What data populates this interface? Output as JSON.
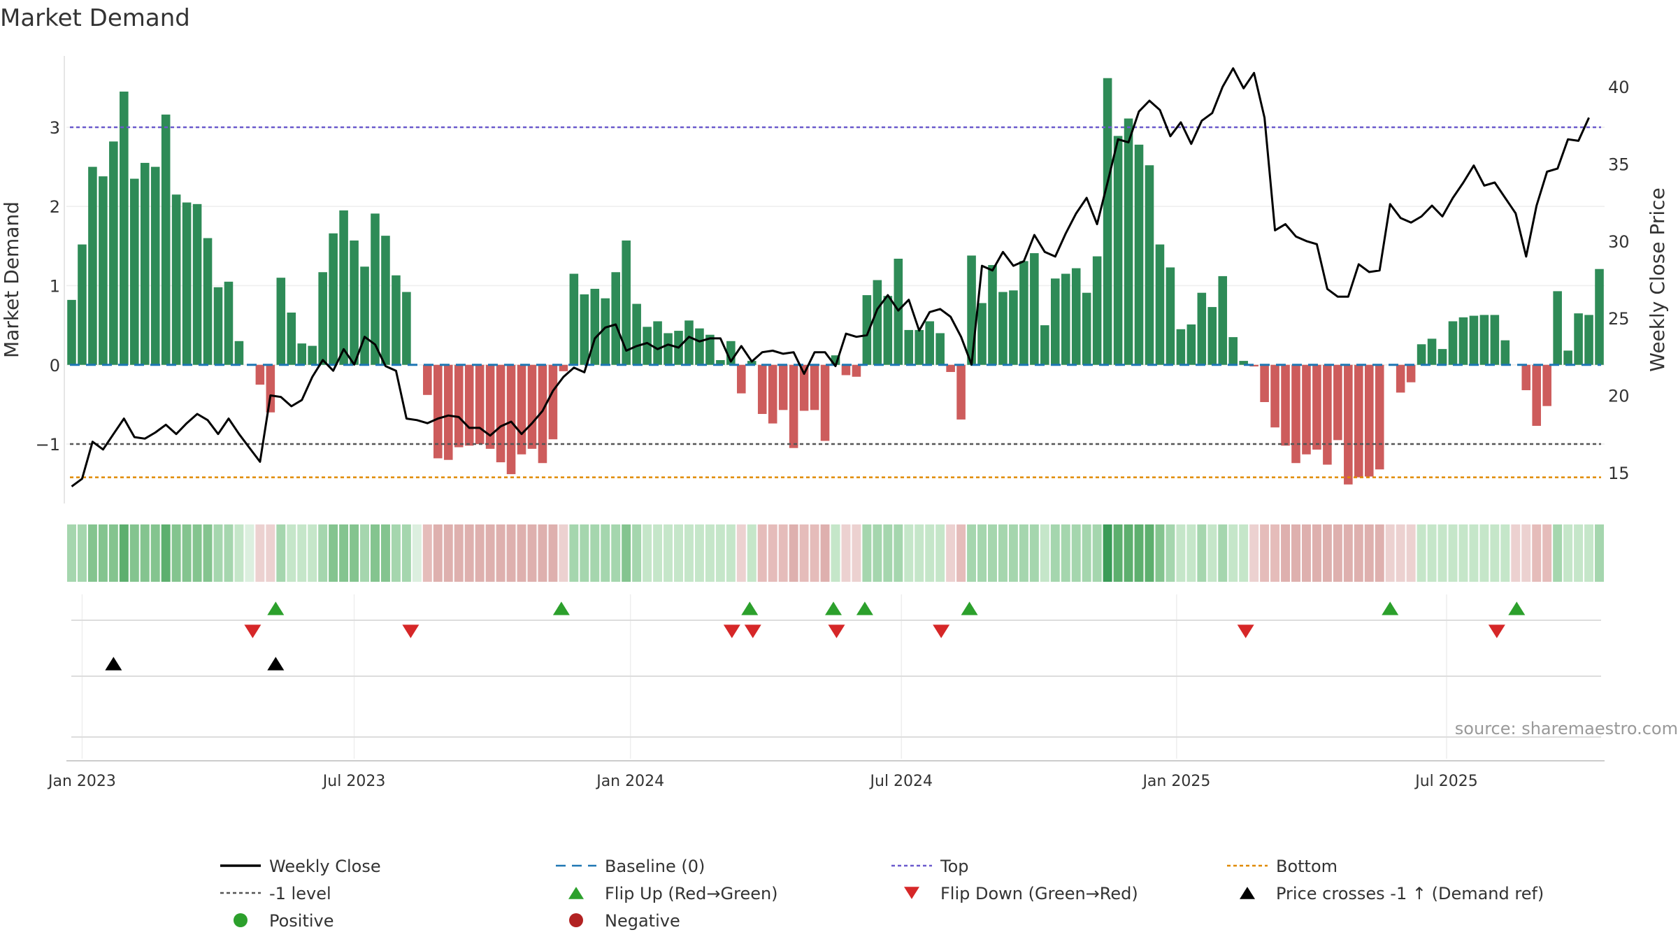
{
  "chart_data": {
    "type": "bar",
    "title": "Market Demand",
    "ylabel": "Market Demand",
    "y2label": "Weekly Close Price",
    "ylim": [
      -1.75,
      3.9
    ],
    "y2lim": [
      13,
      42
    ],
    "yticks": [
      -1,
      0,
      1,
      2,
      3
    ],
    "ytick_labels": [
      "−1",
      "0",
      "1",
      "2",
      "3"
    ],
    "y2ticks": [
      15,
      20,
      25,
      30,
      35,
      40
    ],
    "y2tick_labels": [
      "15",
      "20",
      "25",
      "30",
      "35",
      "40"
    ],
    "x_week_start": 0,
    "xticks": [
      {
        "week": 1,
        "label": "Jan 2023"
      },
      {
        "week": 27,
        "label": "Jul 2023"
      },
      {
        "week": 53.4,
        "label": "Jan 2024"
      },
      {
        "week": 79.3,
        "label": "Jul 2024"
      },
      {
        "week": 105.6,
        "label": "Jan 2025"
      },
      {
        "week": 131.4,
        "label": "Jul 2025"
      }
    ],
    "demand": [
      0.82,
      1.52,
      2.5,
      2.38,
      2.82,
      3.45,
      2.35,
      2.55,
      2.5,
      3.16,
      2.15,
      2.05,
      2.03,
      1.6,
      0.98,
      1.05,
      0.3,
      0.0,
      -0.25,
      -0.6,
      1.1,
      0.66,
      0.27,
      0.24,
      1.17,
      1.66,
      1.95,
      1.57,
      1.24,
      1.91,
      1.63,
      1.13,
      0.92,
      0.0,
      -0.38,
      -1.18,
      -1.2,
      -1.04,
      -1.02,
      -1.0,
      -1.06,
      -1.23,
      -1.38,
      -1.13,
      -1.06,
      -1.24,
      -0.94,
      -0.08,
      1.15,
      0.89,
      0.96,
      0.84,
      1.17,
      1.57,
      0.77,
      0.48,
      0.55,
      0.4,
      0.43,
      0.56,
      0.46,
      0.38,
      0.06,
      0.3,
      -0.36,
      0.05,
      -0.62,
      -0.74,
      -0.57,
      -1.05,
      -0.58,
      -0.57,
      -0.96,
      0.12,
      -0.13,
      -0.15,
      0.88,
      1.07,
      0.87,
      1.34,
      0.44,
      0.44,
      0.55,
      0.4,
      -0.09,
      -0.69,
      1.38,
      0.78,
      1.26,
      0.92,
      0.94,
      1.31,
      1.41,
      0.5,
      1.09,
      1.15,
      1.22,
      0.91,
      1.37,
      3.62,
      2.89,
      3.11,
      2.78,
      2.52,
      1.52,
      1.23,
      0.45,
      0.51,
      0.91,
      0.73,
      1.12,
      0.35,
      0.05,
      -0.02,
      -0.47,
      -0.79,
      -1.02,
      -1.24,
      -1.13,
      -1.07,
      -1.26,
      -0.95,
      -1.51,
      -1.42,
      -1.41,
      -1.32,
      0.0,
      -0.35,
      -0.22,
      0.26,
      0.33,
      0.2,
      0.55,
      0.6,
      0.62,
      0.63,
      0.63,
      0.31,
      -0.0,
      -0.32,
      -0.77,
      -0.52,
      0.93,
      0.18,
      0.65,
      0.63,
      1.21
    ],
    "weekly_close": [
      14.1,
      14.6,
      17.0,
      16.5,
      17.5,
      18.5,
      17.3,
      17.2,
      17.6,
      18.1,
      17.5,
      18.2,
      18.8,
      18.4,
      17.5,
      18.5,
      17.5,
      16.6,
      15.7,
      20.0,
      19.9,
      19.3,
      19.7,
      21.2,
      22.3,
      21.6,
      23.0,
      22.0,
      23.8,
      23.3,
      21.9,
      21.6,
      18.5,
      18.4,
      18.2,
      18.5,
      18.7,
      18.6,
      17.9,
      17.9,
      17.4,
      18.0,
      18.3,
      17.5,
      18.2,
      19.0,
      20.3,
      21.2,
      21.8,
      21.5,
      23.7,
      24.4,
      24.6,
      22.9,
      23.2,
      23.4,
      23.0,
      23.3,
      23.1,
      23.8,
      23.5,
      23.7,
      23.7,
      22.2,
      23.2,
      22.2,
      22.8,
      22.9,
      22.7,
      22.8,
      21.4,
      22.8,
      22.8,
      21.9,
      24.0,
      23.8,
      23.9,
      25.6,
      26.5,
      25.5,
      26.2,
      24.2,
      25.4,
      25.6,
      25.1,
      23.8,
      22.0,
      28.4,
      28.1,
      29.3,
      28.4,
      28.7,
      30.4,
      29.3,
      29.0,
      30.5,
      31.8,
      32.8,
      31.1,
      33.8,
      36.6,
      36.4,
      38.4,
      39.1,
      38.5,
      36.8,
      37.7,
      36.3,
      37.8,
      38.3,
      40.0,
      41.2,
      39.9,
      40.9,
      38.0,
      30.7,
      31.1,
      30.3,
      30.0,
      29.8,
      26.9,
      26.4,
      26.4,
      28.5,
      28.0,
      28.1,
      32.4,
      31.5,
      31.2,
      31.6,
      32.3,
      31.6,
      32.8,
      33.8,
      34.9,
      33.6,
      33.8,
      32.8,
      31.8,
      29.0,
      32.3,
      34.5,
      34.7,
      36.6,
      36.5,
      38.0
    ],
    "shade_levels": [
      2,
      2,
      3,
      3,
      3,
      4,
      3,
      3,
      3,
      4,
      3,
      3,
      3,
      3,
      2,
      2,
      1,
      0,
      -1,
      -1,
      2,
      1,
      1,
      1,
      2,
      3,
      3,
      3,
      2,
      3,
      3,
      2,
      2,
      0,
      -2,
      -3,
      -3,
      -3,
      -3,
      -3,
      -3,
      -3,
      -3,
      -3,
      -3,
      -3,
      -3,
      -1,
      2,
      2,
      2,
      2,
      2,
      3,
      2,
      1,
      1,
      1,
      1,
      1,
      1,
      1,
      1,
      1,
      -1,
      1,
      -2,
      -2,
      -2,
      -3,
      -2,
      -2,
      -3,
      1,
      -1,
      -1,
      2,
      2,
      2,
      2,
      1,
      1,
      1,
      1,
      -1,
      -2,
      2,
      2,
      2,
      2,
      2,
      2,
      2,
      1,
      2,
      2,
      2,
      2,
      2,
      5,
      4,
      4,
      4,
      4,
      3,
      2,
      1,
      1,
      2,
      1,
      2,
      1,
      1,
      -1,
      -2,
      -2,
      -3,
      -3,
      -3,
      -3,
      -3,
      -3,
      -3,
      -3,
      -3,
      -3,
      -1,
      -1,
      -1,
      1,
      1,
      1,
      1,
      1,
      1,
      1,
      1,
      1,
      -1,
      -1,
      -2,
      -2,
      2,
      1,
      1,
      1,
      2
    ],
    "reference_lines": {
      "top": {
        "value": 3,
        "label": "Top"
      },
      "minus_one": {
        "value": -1,
        "label": "-1 level"
      },
      "bottom": {
        "value": -1.42,
        "label": "Bottom"
      },
      "baseline": {
        "value": 0,
        "label": "Baseline (0)"
      }
    },
    "flip_up_weeks": [
      19.5,
      46.8,
      64.8,
      72.8,
      75.8,
      85.8,
      126.0,
      138.1
    ],
    "flip_down_weeks": [
      17.3,
      32.4,
      63.1,
      65.1,
      73.1,
      83.1,
      112.2,
      136.2
    ],
    "price_cross_weeks": [
      4.0,
      19.5
    ],
    "colors": {
      "positive_bar": "#2e8b57",
      "negative_bar": "#cd5c5c",
      "weekly_close": "#000000",
      "baseline": "#1f77b4",
      "top": "#6a5acd",
      "minus_one": "#555555",
      "bottom": "#e08a00",
      "flip_up": "#2ca02c",
      "flip_down": "#d62728",
      "price_cross": "#000000",
      "positive_dot": "#2ca02c",
      "negative_dot": "#b22222"
    },
    "source": "source: sharemaestro.com",
    "legend": [
      {
        "label": "Weekly Close",
        "marker": "solid-line",
        "color": "#000000"
      },
      {
        "label": "Baseline (0)",
        "marker": "dashed-line",
        "color": "#1f77b4"
      },
      {
        "label": "Top",
        "marker": "dotted-line",
        "color": "#6a5acd"
      },
      {
        "label": "Bottom",
        "marker": "dotted-line",
        "color": "#e08a00"
      },
      {
        "label": "-1 level",
        "marker": "dotted-line",
        "color": "#555555"
      },
      {
        "label": "Flip Up (Red→Green)",
        "marker": "triangle-up",
        "color": "#2ca02c"
      },
      {
        "label": "Flip Down (Green→Red)",
        "marker": "triangle-down",
        "color": "#d62728"
      },
      {
        "label": "Price crosses -1 ↑ (Demand ref)",
        "marker": "triangle-up",
        "color": "#000000"
      },
      {
        "label": "Positive",
        "marker": "circle",
        "color": "#2ca02c"
      },
      {
        "label": "Negative",
        "marker": "circle",
        "color": "#b22222"
      }
    ]
  }
}
